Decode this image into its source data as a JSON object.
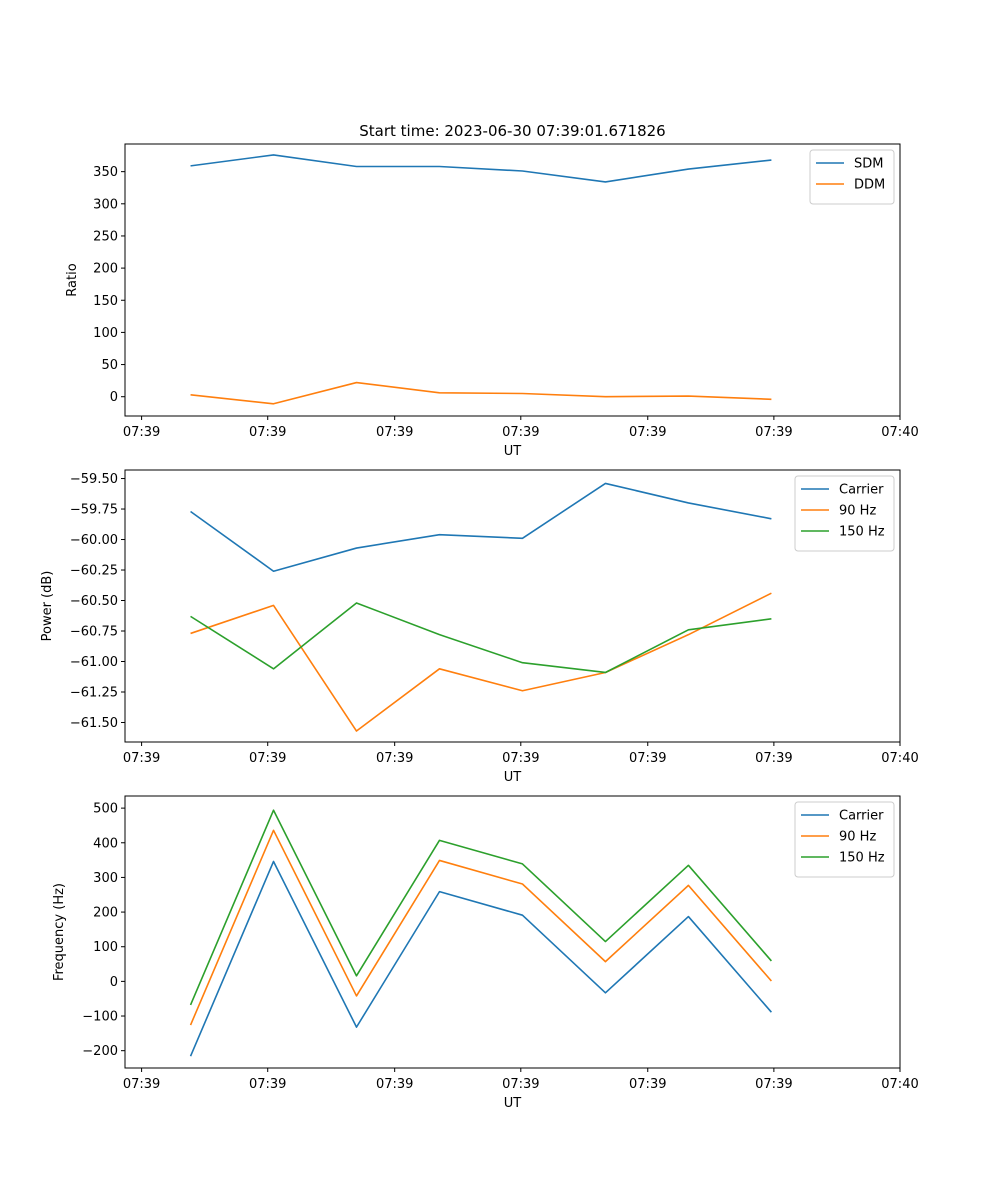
{
  "title": "Start time: 2023-06-30 07:39:01.671826",
  "colors": {
    "blue": "#1f77b4",
    "orange": "#ff7f0e",
    "green": "#2ca02c"
  },
  "chart_data": [
    {
      "type": "line",
      "xlabel": "UT",
      "ylabel": "Ratio",
      "x_tick_labels": [
        "07:39",
        "07:39",
        "07:39",
        "07:39",
        "07:39",
        "07:39",
        "07:40"
      ],
      "y_ticks": [
        0,
        50,
        100,
        150,
        200,
        250,
        300,
        350
      ],
      "ylim": [
        -30,
        393
      ],
      "x": [
        1,
        2,
        3,
        4,
        5,
        6,
        7,
        8
      ],
      "legend": "top-right",
      "series": [
        {
          "name": "SDM",
          "color": "#1f77b4",
          "values": [
            359,
            376,
            358,
            358,
            351,
            334,
            354,
            368
          ]
        },
        {
          "name": "DDM",
          "color": "#ff7f0e",
          "values": [
            3,
            -11,
            22,
            6,
            5,
            0,
            1,
            -4
          ]
        }
      ]
    },
    {
      "type": "line",
      "xlabel": "UT",
      "ylabel": "Power (dB)",
      "x_tick_labels": [
        "07:39",
        "07:39",
        "07:39",
        "07:39",
        "07:39",
        "07:39",
        "07:40"
      ],
      "y_ticks": [
        -61.5,
        -61.25,
        -61.0,
        -60.75,
        -60.5,
        -60.25,
        -60.0,
        -59.75,
        -59.5
      ],
      "y_tick_labels": [
        "−61.50",
        "−61.25",
        "−61.00",
        "−60.75",
        "−60.50",
        "−60.25",
        "−60.00",
        "−59.75",
        "−59.50"
      ],
      "ylim": [
        -61.66,
        -59.43
      ],
      "x": [
        1,
        2,
        3,
        4,
        5,
        6,
        7,
        8
      ],
      "legend": "top-right",
      "series": [
        {
          "name": "Carrier",
          "color": "#1f77b4",
          "values": [
            -59.77,
            -60.26,
            -60.07,
            -59.96,
            -59.99,
            -59.54,
            -59.7,
            -59.83
          ]
        },
        {
          "name": "90 Hz",
          "color": "#ff7f0e",
          "values": [
            -60.77,
            -60.54,
            -61.57,
            -61.06,
            -61.24,
            -61.09,
            -60.78,
            -60.44
          ]
        },
        {
          "name": "150 Hz",
          "color": "#2ca02c",
          "values": [
            -60.63,
            -61.06,
            -60.52,
            -60.78,
            -61.01,
            -61.09,
            -60.74,
            -60.65
          ]
        }
      ]
    },
    {
      "type": "line",
      "xlabel": "UT",
      "ylabel": "Frequency (Hz)",
      "x_tick_labels": [
        "07:39",
        "07:39",
        "07:39",
        "07:39",
        "07:39",
        "07:39",
        "07:40"
      ],
      "y_ticks": [
        -200,
        -100,
        0,
        100,
        200,
        300,
        400,
        500
      ],
      "y_tick_labels": [
        "−200",
        "−100",
        "0",
        "100",
        "200",
        "300",
        "400",
        "500"
      ],
      "ylim": [
        -250,
        535
      ],
      "x": [
        1,
        2,
        3,
        4,
        5,
        6,
        7,
        8
      ],
      "legend": "top-right",
      "series": [
        {
          "name": "Carrier",
          "color": "#1f77b4",
          "values": [
            -216,
            346,
            -132,
            259,
            191,
            -33,
            187,
            -89
          ]
        },
        {
          "name": "90 Hz",
          "color": "#ff7f0e",
          "values": [
            -126,
            436,
            -42,
            349,
            281,
            57,
            277,
            1
          ]
        },
        {
          "name": "150 Hz",
          "color": "#2ca02c",
          "values": [
            -68,
            494,
            16,
            407,
            339,
            115,
            335,
            59
          ]
        }
      ]
    }
  ]
}
